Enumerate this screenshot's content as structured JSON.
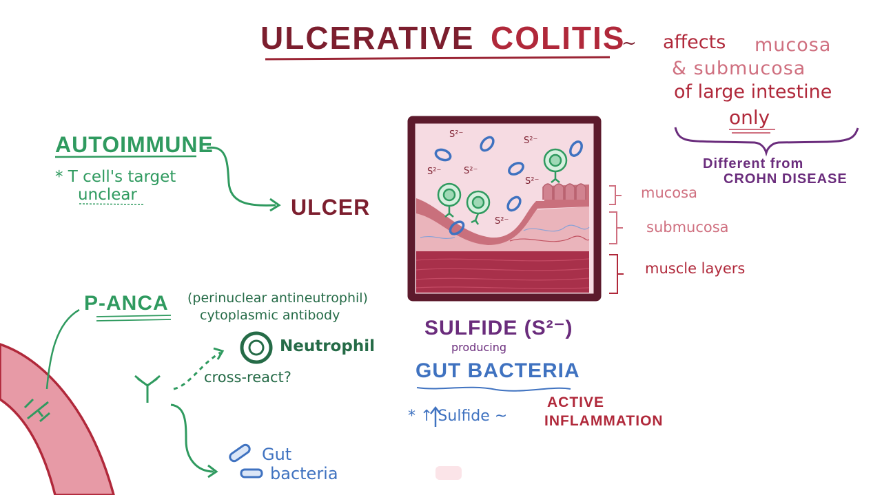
{
  "title": {
    "part1": "ULCERATIVE",
    "part2": "COLITIS",
    "tilde": "~"
  },
  "affects": {
    "line1_a": "affects",
    "line1_b": "mucosa",
    "line2": "& submucosa",
    "line3": "of large intestine",
    "line4": "only"
  },
  "different": {
    "line1": "Different from",
    "line2": "CROHN DISEASE"
  },
  "autoimmune": {
    "heading": "AUTOIMMUNE",
    "note_line1": "* T cell's target",
    "note_line2": "unclear",
    "arrow_target": "ULCER"
  },
  "layers": {
    "mucosa": "mucosa",
    "submucosa": "submucosa",
    "muscle": "muscle layers"
  },
  "sulfide_labels": {
    "s1": "S²⁻",
    "s2": "S²⁻",
    "s3": "S²⁻",
    "s4": "S²⁻",
    "s5": "S²⁻",
    "s6": "S²⁻"
  },
  "bacteria": {
    "line1": "SULFIDE (S²⁻)",
    "line2": "producing",
    "line3": "GUT BACTERIA",
    "note_a": "* ↑ Sulfide ~",
    "note_b1": "ACTIVE",
    "note_b2": "INFLAMMATION"
  },
  "panca": {
    "heading": "P-ANCA",
    "expansion_line1": "(perinuclear antineutrophil)",
    "expansion_line2": "cytoplasmic antibody",
    "neutrophil": "Neutrophil",
    "cross_react": "cross-react?",
    "gut_line1": "Gut",
    "gut_line2": "bacteria"
  },
  "colors": {
    "wine": "#7c1e2e",
    "red": "#b0283a",
    "pink": "#cf6f7f",
    "purple": "#6a2c7c",
    "green": "#2f9a5f",
    "dgreen": "#256b47",
    "blue": "#3f72c0"
  }
}
